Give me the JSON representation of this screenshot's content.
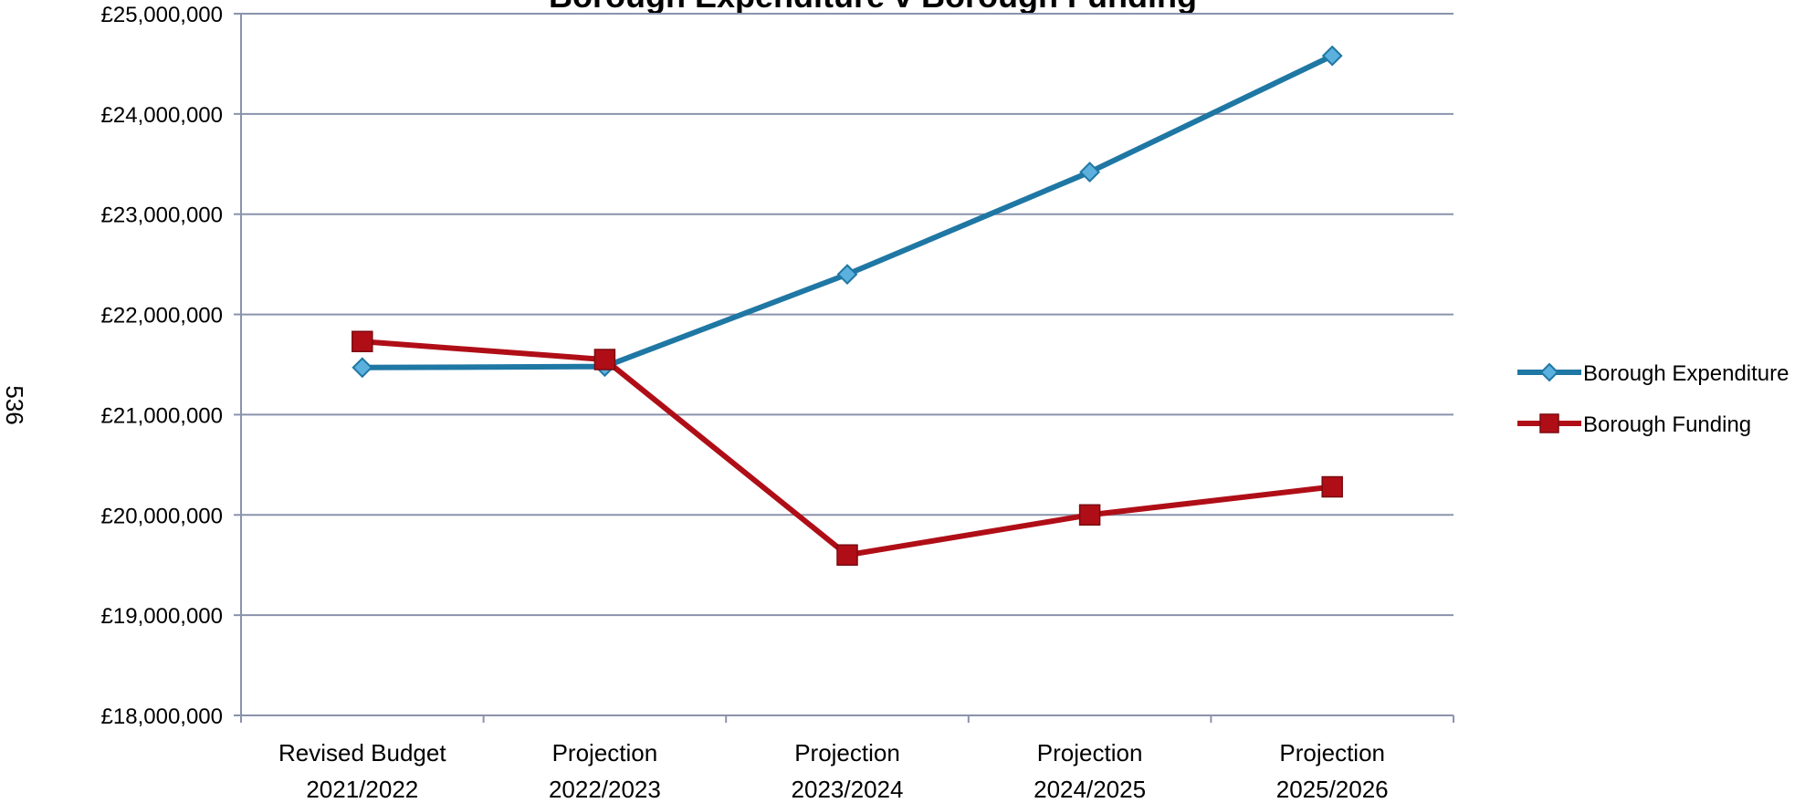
{
  "page_number": "536",
  "chart_data": {
    "type": "line",
    "title": "Borough Expenditure v Borough Funding",
    "categories": [
      [
        "Revised Budget",
        "2021/2022"
      ],
      [
        "Projection",
        "2022/2023"
      ],
      [
        "Projection",
        "2023/2024"
      ],
      [
        "Projection",
        "2024/2025"
      ],
      [
        "Projection",
        "2025/2026"
      ]
    ],
    "yticks": [
      "£18,000,000",
      "£19,000,000",
      "£20,000,000",
      "£21,000,000",
      "£22,000,000",
      "£23,000,000",
      "£24,000,000",
      "£25,000,000"
    ],
    "ylim": [
      18000000,
      25000000
    ],
    "ystep": 1000000,
    "grid": true,
    "legend_position": "right",
    "series": [
      {
        "name": "Borough Expenditure",
        "color": "#1F77A4",
        "marker_fill": "#5BB0DD",
        "marker": "diamond",
        "values": [
          21470000,
          21480000,
          22400000,
          23420000,
          24580000
        ]
      },
      {
        "name": "Borough Funding",
        "color": "#B00E17",
        "marker_fill": "#B00E17",
        "marker": "square",
        "values": [
          21730000,
          21550000,
          19600000,
          20000000,
          20280000
        ]
      }
    ]
  }
}
